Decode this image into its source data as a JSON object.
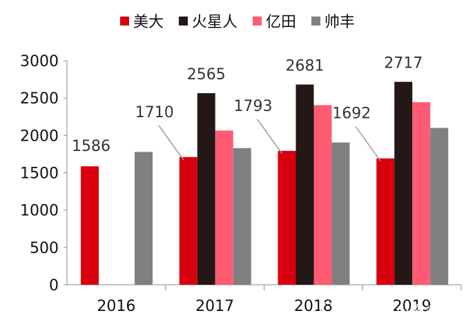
{
  "chart_data": {
    "type": "bar",
    "categories": [
      "2016",
      "2017",
      "2018",
      "2019"
    ],
    "series": [
      {
        "name": "美大",
        "color": "#d8000e",
        "values": [
          1586,
          1710,
          1793,
          1692
        ]
      },
      {
        "name": "火星人",
        "color": "#231815",
        "values": [
          null,
          2565,
          2681,
          2717
        ]
      },
      {
        "name": "亿田",
        "color": "#ff5c73",
        "values": [
          null,
          2065,
          2405,
          2445
        ]
      },
      {
        "name": "帅丰",
        "color": "#808080",
        "values": [
          1778,
          1830,
          1905,
          2100
        ]
      }
    ],
    "data_labels": [
      {
        "category": "2016",
        "series": "美大",
        "text": "1586"
      },
      {
        "category": "2017",
        "series": "美大",
        "text": "1710"
      },
      {
        "category": "2017",
        "series": "火星人",
        "text": "2565"
      },
      {
        "category": "2018",
        "series": "美大",
        "text": "1793"
      },
      {
        "category": "2018",
        "series": "火星人",
        "text": "2681"
      },
      {
        "category": "2019",
        "series": "美大",
        "text": "1692"
      },
      {
        "category": "2019",
        "series": "火星人",
        "text": "2717"
      }
    ],
    "ylim": [
      0,
      3000
    ],
    "yticks": [
      0,
      500,
      1000,
      1500,
      2000,
      2500,
      3000
    ],
    "legend_position": "top",
    "grid": false
  },
  "watermark": "雪球：小小投资罐子"
}
